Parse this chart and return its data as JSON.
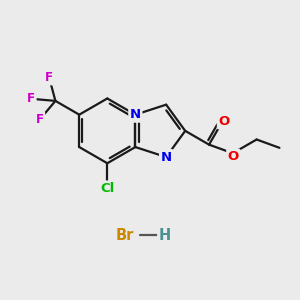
{
  "background_color": "#ebebeb",
  "bond_color": "#1a1a1a",
  "bond_width": 1.6,
  "atom_colors": {
    "N": "#0000ee",
    "O": "#ee0000",
    "F": "#cc00cc",
    "Cl": "#00bb00",
    "Br": "#cc8800",
    "H_color": "#4a9090"
  },
  "figsize": [
    3.0,
    3.0
  ],
  "dpi": 100,
  "xlim": [
    0,
    10
  ],
  "ylim": [
    0,
    10
  ]
}
